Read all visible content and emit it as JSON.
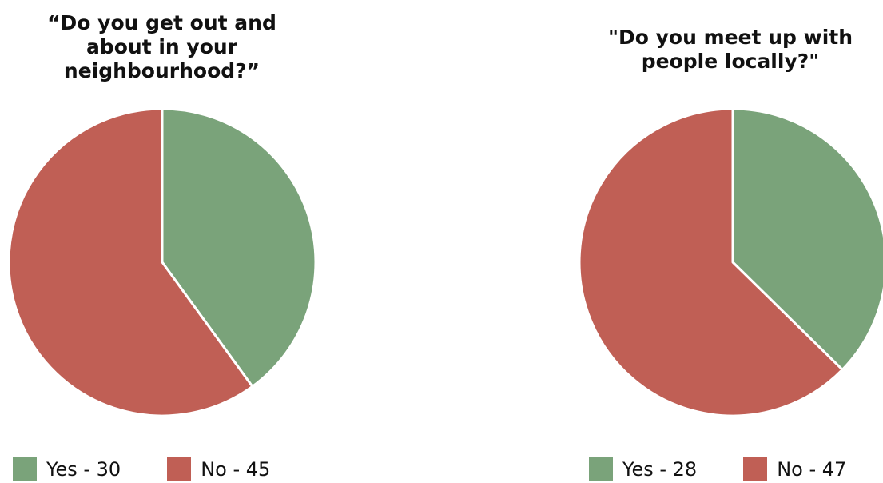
{
  "colors": {
    "yes": "#7aa37a",
    "no": "#c05f55",
    "divider": "#ffffff"
  },
  "chart_data": [
    {
      "type": "pie",
      "title": "“Do you get out and about in your neighbourhood?”",
      "slices": [
        {
          "label": "Yes",
          "value": 30,
          "legend": "Yes - 30"
        },
        {
          "label": "No",
          "value": 45,
          "legend": "No - 45"
        }
      ],
      "start_angle_deg": 0,
      "direction": "clockwise",
      "legend_position": "bottom"
    },
    {
      "type": "pie",
      "title": "\"Do you meet up with people locally?\"",
      "slices": [
        {
          "label": "Yes",
          "value": 28,
          "legend": "Yes - 28"
        },
        {
          "label": "No",
          "value": 47,
          "legend": "No - 47"
        }
      ],
      "start_angle_deg": 0,
      "direction": "clockwise",
      "legend_position": "bottom"
    }
  ]
}
